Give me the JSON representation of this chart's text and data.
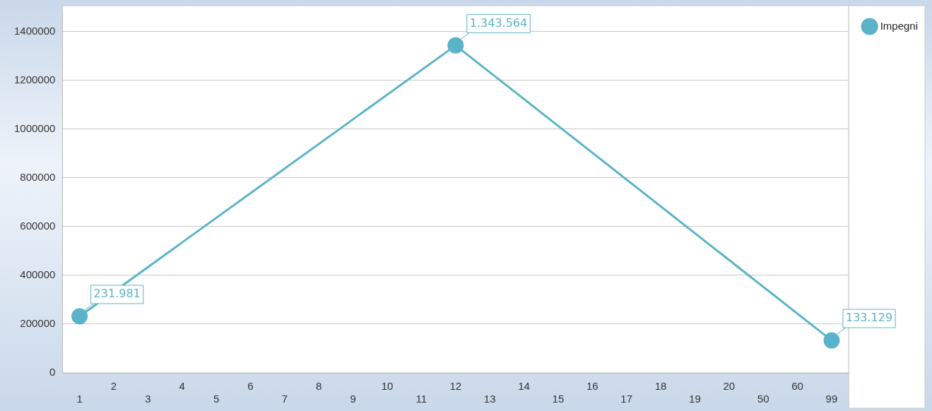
{
  "chart_data": {
    "type": "line",
    "categories": [
      "1",
      "2",
      "3",
      "4",
      "5",
      "6",
      "7",
      "8",
      "9",
      "10",
      "11",
      "12",
      "13",
      "14",
      "15",
      "16",
      "17",
      "18",
      "19",
      "20",
      "50",
      "60",
      "99"
    ],
    "series": [
      {
        "name": "Impegni",
        "color": "#5bb3c8",
        "values": [
          231981,
          null,
          null,
          null,
          null,
          null,
          null,
          null,
          null,
          null,
          null,
          1343564,
          null,
          null,
          null,
          null,
          null,
          null,
          null,
          null,
          null,
          null,
          133129
        ],
        "value_labels": [
          "231.981",
          null,
          null,
          null,
          null,
          null,
          null,
          null,
          null,
          null,
          null,
          "1.343.564",
          null,
          null,
          null,
          null,
          null,
          null,
          null,
          null,
          null,
          null,
          "133.129"
        ]
      }
    ],
    "ylim": [
      0,
      1475000
    ],
    "yticks": [
      0,
      200000,
      400000,
      600000,
      800000,
      1000000,
      1200000,
      1400000
    ],
    "grid": "y",
    "legend": "top right",
    "marker": "circle",
    "line_style": "solid"
  }
}
